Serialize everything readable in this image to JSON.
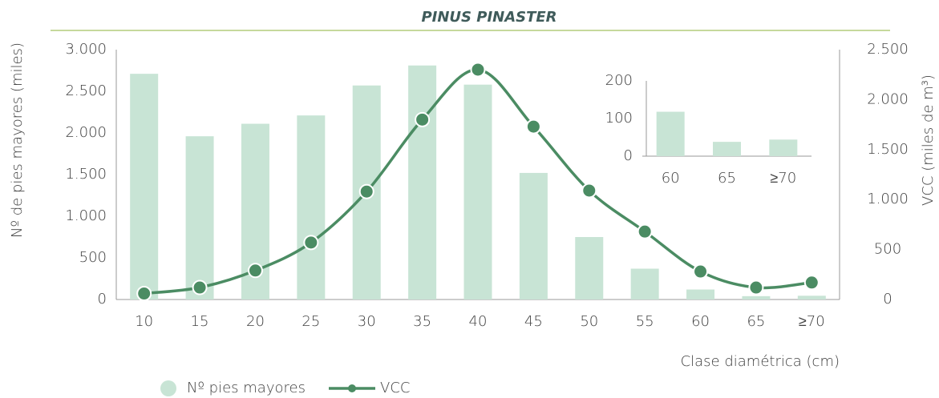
{
  "chart_data": [
    {
      "type": "combo",
      "title": "PINUS PINASTER",
      "xlabel": "Clase diamétrica (cm)",
      "ylabel": "Nº de pies mayores (miles)",
      "y2label": "VCC (miles de m³)",
      "categories": [
        "10",
        "15",
        "20",
        "25",
        "30",
        "35",
        "40",
        "45",
        "50",
        "55",
        "60",
        "65",
        "≥70"
      ],
      "series": [
        {
          "name": "Nº pies mayores",
          "type": "bar",
          "color": "#c8e4d5",
          "values": [
            2710,
            1960,
            2110,
            2210,
            2570,
            2810,
            2580,
            1520,
            750,
            370,
            120,
            40,
            45
          ]
        },
        {
          "name": "VCC",
          "type": "line",
          "axis": "y2",
          "color": "#4b8c63",
          "values": [
            60,
            120,
            290,
            570,
            1080,
            1800,
            2300,
            1730,
            1090,
            680,
            280,
            120,
            170
          ]
        }
      ],
      "ylim": [
        0,
        3000
      ],
      "yticks": [
        0,
        500,
        {
          "value": 1000,
          "label": "1.000"
        },
        {
          "value": 1500,
          "label": "1.500"
        },
        {
          "value": 2000,
          "label": "2.000"
        },
        {
          "value": 2500,
          "label": "2.500"
        },
        {
          "value": 3000,
          "label": "3.000"
        }
      ],
      "y2lim": [
        0,
        2500
      ],
      "y2ticks": [
        0,
        500,
        {
          "value": 1000,
          "label": "1.000"
        },
        {
          "value": 1500,
          "label": "1.500"
        },
        {
          "value": 2000,
          "label": "2.000"
        },
        {
          "value": 2500,
          "label": "2.500"
        }
      ],
      "legend": "bottom"
    },
    {
      "type": "bar",
      "categories": [
        "60",
        "65",
        "≥70"
      ],
      "values": [
        118,
        38,
        44
      ],
      "color": "#c8e4d5",
      "ylim": [
        0,
        200
      ],
      "yticks": [
        0,
        100,
        200
      ]
    }
  ]
}
